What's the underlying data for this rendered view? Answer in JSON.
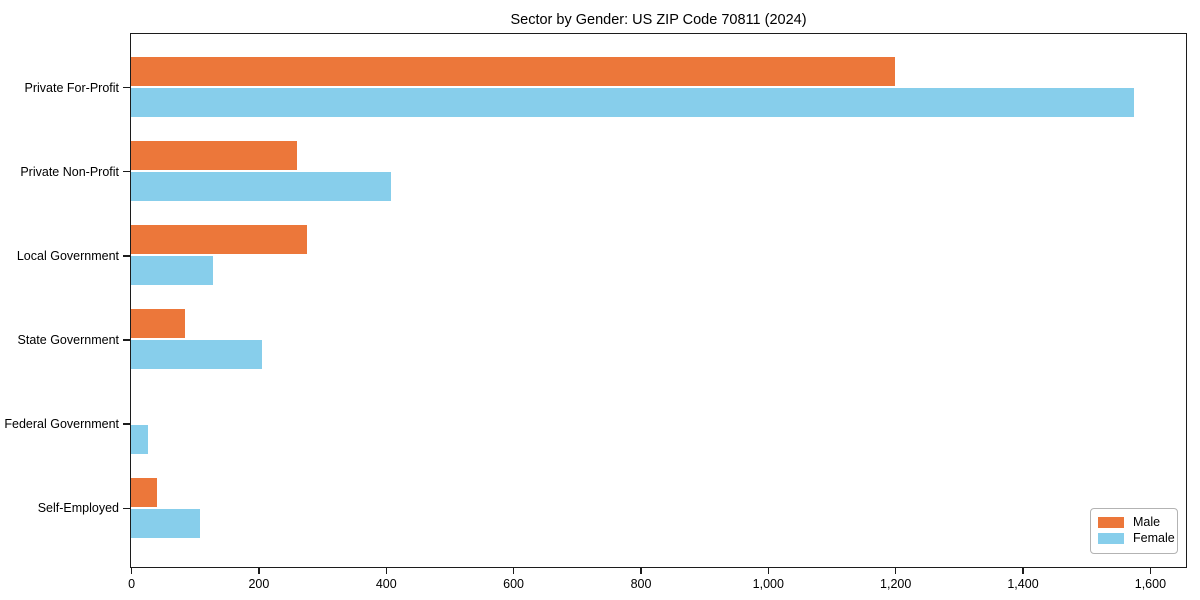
{
  "chart_data": {
    "type": "bar",
    "orientation": "horizontal",
    "title": "Sector by Gender: US ZIP Code 70811 (2024)",
    "categories": [
      "Private For-Profit",
      "Private Non-Profit",
      "Local Government",
      "State Government",
      "Federal Government",
      "Self-Employed"
    ],
    "series": [
      {
        "name": "Male",
        "color": "#EC773A",
        "values": [
          1200,
          260,
          277,
          84,
          0,
          40
        ]
      },
      {
        "name": "Female",
        "color": "#87CEEB",
        "values": [
          1575,
          408,
          128,
          206,
          26,
          109
        ]
      }
    ],
    "xlabel": "",
    "ylabel": "",
    "xlim": [
      0,
      1655
    ],
    "x_ticks": [
      0,
      200,
      400,
      600,
      800,
      1000,
      1200,
      1400,
      1600
    ],
    "x_tick_labels": [
      "0",
      "200",
      "400",
      "600",
      "800",
      "1,000",
      "1,200",
      "1,400",
      "1,600"
    ],
    "grid": false,
    "legend_position": "lower right"
  },
  "legend": {
    "items": [
      {
        "label": "Male"
      },
      {
        "label": "Female"
      }
    ]
  }
}
